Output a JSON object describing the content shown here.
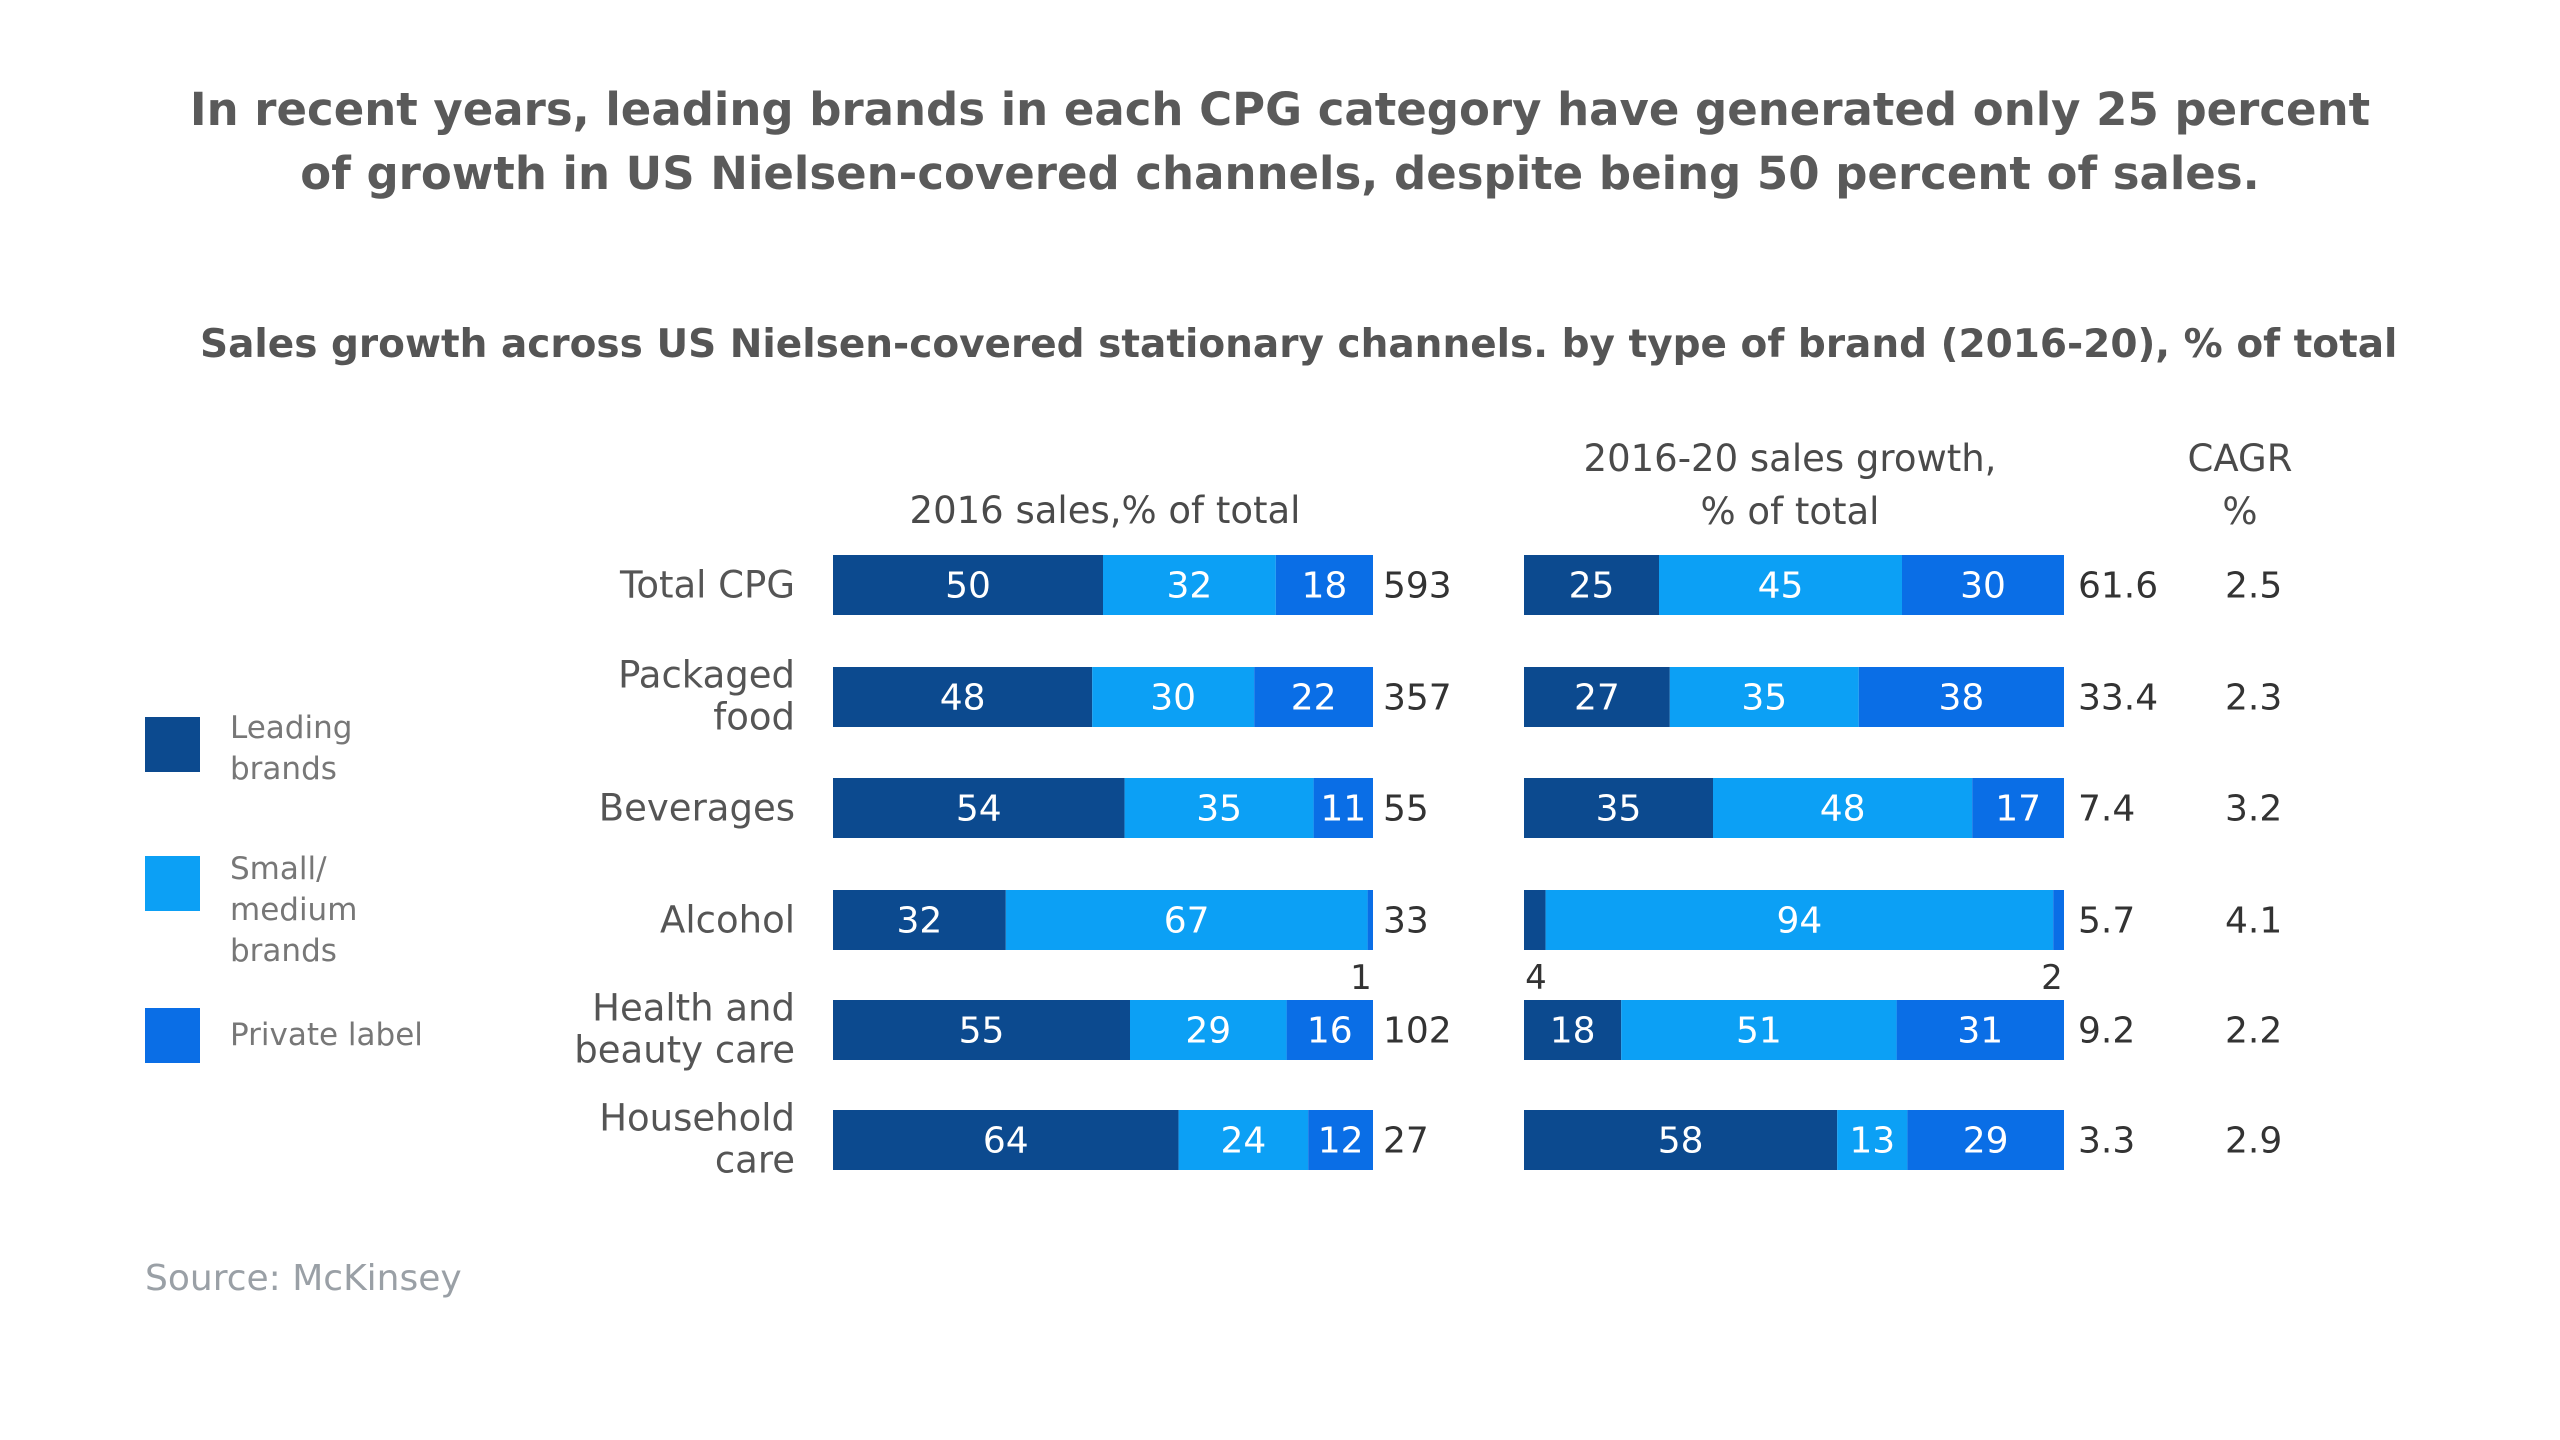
{
  "headline": {
    "line1": "In recent years, leading brands in each CPG category have generated only 25 percent",
    "line2": "of growth in US Nielsen-covered channels, despite being 50 percent of sales."
  },
  "subtitle": "Sales growth across US Nielsen-covered stationary channels. by type of brand (2016-20), % of total",
  "column_headers": {
    "sales": "2016 sales,% of total",
    "growth_line1": "2016-20 sales growth,",
    "growth_line2": "% of total",
    "cagr_line1": "CAGR",
    "cagr_line2": "%"
  },
  "legend": [
    {
      "line1": "Leading",
      "line2": "brands",
      "line3": "",
      "color": "#0c4a8f"
    },
    {
      "line1": "Small/",
      "line2": "medium",
      "line3": "brands",
      "color": "#0ca0f5"
    },
    {
      "line1": "Private label",
      "line2": "",
      "line3": "",
      "color": "#0a6ee6"
    }
  ],
  "source": "Source: McKinsey",
  "chart_data": {
    "type": "bar",
    "orientation": "horizontal-stacked",
    "categories": [
      [
        "Total CPG"
      ],
      [
        "Packaged",
        "food"
      ],
      [
        "Beverages"
      ],
      [
        "Alcohol"
      ],
      [
        "Health and",
        "beauty care"
      ],
      [
        "Household",
        "care"
      ]
    ],
    "series_names": [
      "Leading brands",
      "Small/medium brands",
      "Private label"
    ],
    "colors": [
      "#0c4a8f",
      "#0ca0f5",
      "#0a6ee6"
    ],
    "sales_2016": {
      "values": [
        [
          50,
          32,
          18
        ],
        [
          48,
          30,
          22
        ],
        [
          54,
          35,
          11
        ],
        [
          32,
          67,
          1
        ],
        [
          55,
          29,
          16
        ],
        [
          64,
          24,
          12
        ]
      ],
      "totals": [
        "593",
        "357",
        "55",
        "33",
        "102",
        "27"
      ]
    },
    "growth_2016_20": {
      "values": [
        [
          25,
          45,
          30
        ],
        [
          27,
          35,
          38
        ],
        [
          35,
          48,
          17
        ],
        [
          4,
          94,
          2
        ],
        [
          18,
          51,
          31
        ],
        [
          58,
          13,
          29
        ]
      ],
      "totals": [
        "61.6",
        "33.4",
        "7.4",
        "5.7",
        "9.2",
        "3.3"
      ]
    },
    "cagr": [
      "2.5",
      "2.3",
      "3.2",
      "4.1",
      "2.2",
      "2.9"
    ],
    "xlim": [
      0,
      100
    ]
  }
}
